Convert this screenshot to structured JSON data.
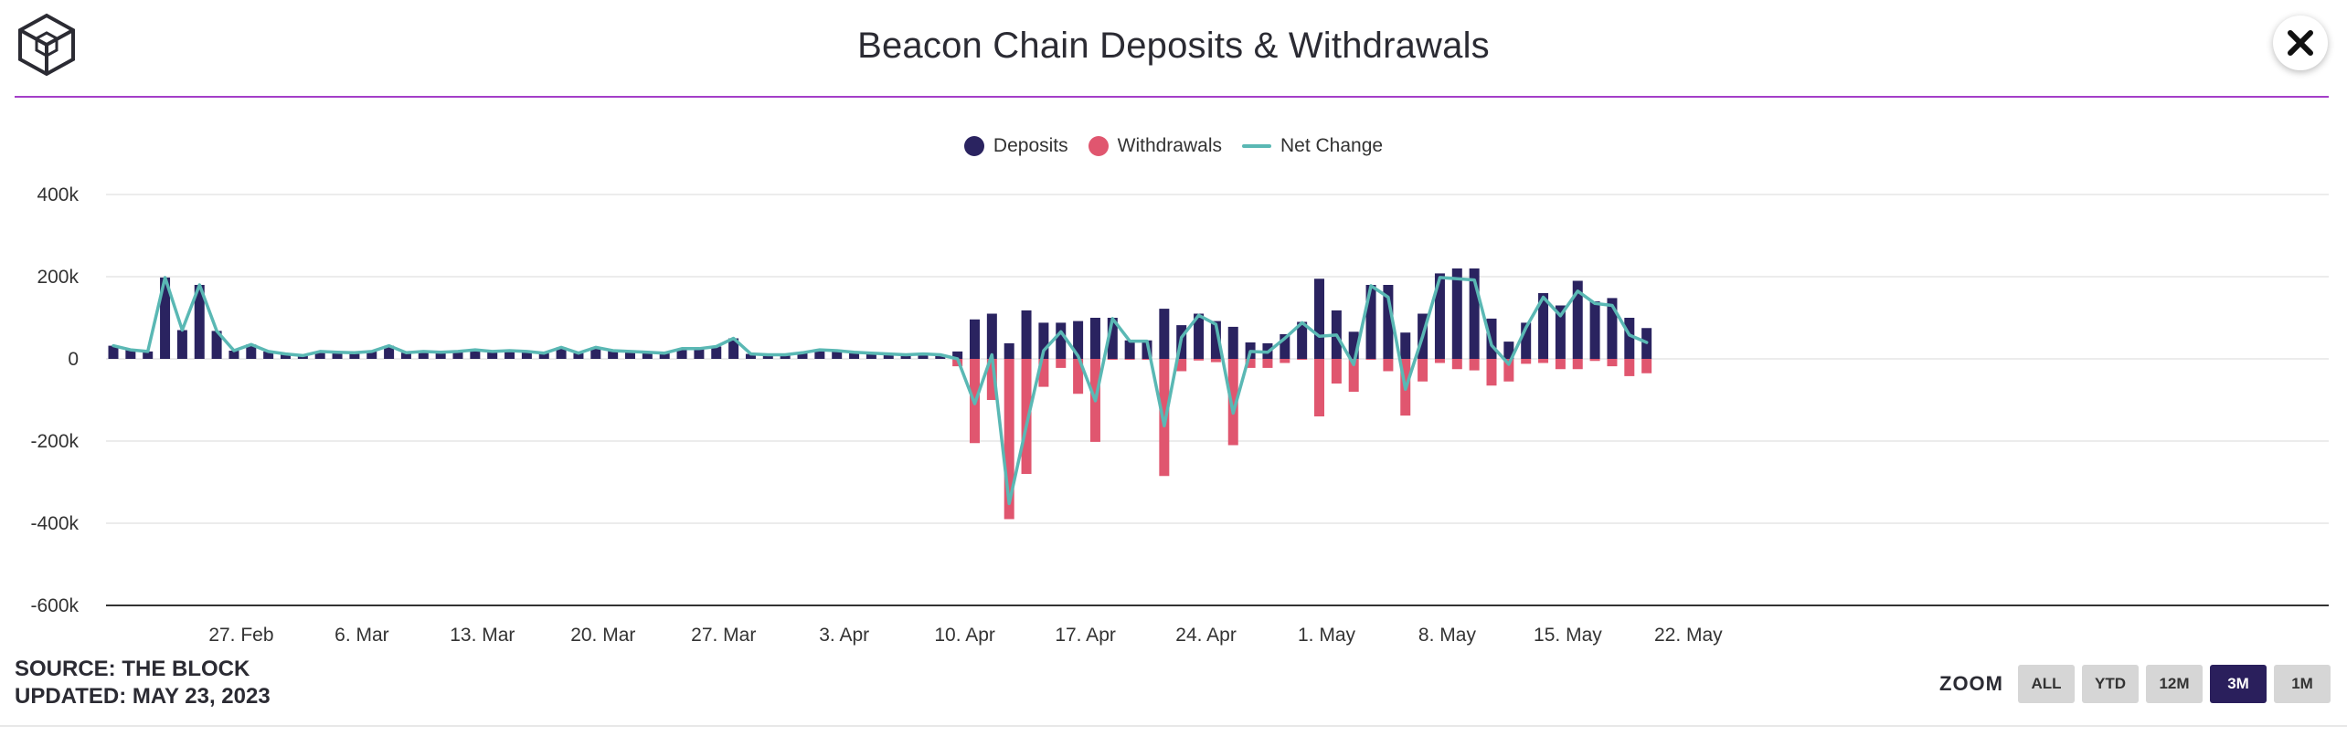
{
  "header": {
    "title": "Beacon Chain Deposits & Withdrawals"
  },
  "legend": {
    "deposits": "Deposits",
    "withdrawals": "Withdrawals",
    "net_change": "Net Change"
  },
  "colors": {
    "deposits": "#2a2360",
    "withdrawals": "#e0566f",
    "net_change": "#5ab8b4",
    "accent": "#a43fc8"
  },
  "chart_data": {
    "type": "bar",
    "title": "Beacon Chain Deposits & Withdrawals",
    "xlabel": "",
    "ylabel": "",
    "ylim": [
      -600000,
      400000
    ],
    "yticks": [
      400000,
      200000,
      0,
      -200000,
      -400000,
      -600000
    ],
    "ytick_labels": [
      "400k",
      "200k",
      "0",
      "-200k",
      "-400k",
      "-600k"
    ],
    "grid": true,
    "legend_position": "top-center",
    "x_tick_labels": [
      "27. Feb",
      "6. Mar",
      "13. Mar",
      "20. Mar",
      "27. Mar",
      "3. Apr",
      "10. Apr",
      "17. Apr",
      "24. Apr",
      "1. May",
      "8. May",
      "15. May",
      "22. May"
    ],
    "x_tick_day_index": [
      7,
      14,
      21,
      28,
      35,
      42,
      49,
      56,
      63,
      70,
      77,
      84,
      91
    ],
    "start_date": "2023-02-20",
    "series": [
      {
        "name": "Deposits",
        "type": "bar",
        "values": [
          32000,
          22000,
          18000,
          198000,
          70000,
          180000,
          68000,
          20000,
          35000,
          18000,
          12000,
          8000,
          18000,
          16000,
          15000,
          18000,
          32000,
          15000,
          18000,
          16000,
          18000,
          22000,
          18000,
          20000,
          18000,
          14000,
          28000,
          14000,
          28000,
          20000,
          18000,
          16000,
          14000,
          25000,
          25000,
          30000,
          50000,
          12000,
          10000,
          10000,
          15000,
          22000,
          20000,
          16000,
          14000,
          12000,
          10000,
          12000,
          10000,
          18000,
          96000,
          110000,
          38000,
          118000,
          88000,
          88000,
          92000,
          100000,
          100000,
          45000,
          45000,
          122000,
          82000,
          110000,
          92000,
          78000,
          40000,
          38000,
          60000,
          90000,
          195000,
          118000,
          66000,
          180000,
          180000,
          64000,
          110000,
          208000,
          220000,
          220000,
          98000,
          42000,
          88000,
          160000,
          130000,
          190000,
          140000,
          148000,
          100000,
          75000
        ]
      },
      {
        "name": "Withdrawals",
        "type": "bar",
        "values": [
          0,
          0,
          0,
          0,
          0,
          0,
          0,
          0,
          0,
          0,
          0,
          0,
          0,
          0,
          0,
          0,
          0,
          0,
          0,
          0,
          0,
          0,
          0,
          0,
          0,
          0,
          0,
          0,
          0,
          0,
          0,
          0,
          0,
          0,
          0,
          0,
          0,
          0,
          0,
          0,
          0,
          0,
          0,
          0,
          0,
          0,
          0,
          0,
          0,
          -18000,
          -205000,
          -100000,
          -390000,
          -280000,
          -68000,
          -22000,
          -85000,
          -202000,
          -2000,
          -2000,
          -2000,
          -285000,
          -30000,
          -4000,
          -8000,
          -210000,
          -22000,
          -22000,
          -10000,
          -2000,
          -140000,
          -60000,
          -80000,
          -2000,
          -30000,
          -138000,
          -55000,
          -10000,
          -25000,
          -28000,
          -65000,
          -55000,
          -12000,
          -10000,
          -25000,
          -25000,
          -5000,
          -18000,
          -42000,
          -35000
        ]
      },
      {
        "name": "Net Change",
        "type": "line",
        "values": [
          32000,
          22000,
          18000,
          198000,
          70000,
          180000,
          68000,
          20000,
          35000,
          18000,
          12000,
          8000,
          18000,
          16000,
          15000,
          18000,
          32000,
          15000,
          18000,
          16000,
          18000,
          22000,
          18000,
          20000,
          18000,
          14000,
          28000,
          14000,
          28000,
          20000,
          18000,
          16000,
          14000,
          25000,
          25000,
          30000,
          50000,
          12000,
          10000,
          10000,
          15000,
          22000,
          20000,
          16000,
          14000,
          12000,
          10000,
          12000,
          10000,
          0,
          -109000,
          10000,
          -352000,
          -162000,
          20000,
          66000,
          7000,
          -102000,
          98000,
          43000,
          43000,
          -163000,
          52000,
          106000,
          84000,
          -132000,
          18000,
          16000,
          50000,
          88000,
          55000,
          58000,
          -14000,
          178000,
          150000,
          -74000,
          55000,
          198000,
          195000,
          192000,
          33000,
          -13000,
          76000,
          150000,
          105000,
          165000,
          135000,
          130000,
          58000,
          40000
        ]
      }
    ]
  },
  "footer": {
    "source": "SOURCE: THE BLOCK",
    "updated": "UPDATED: MAY 23, 2023"
  },
  "zoom": {
    "label": "ZOOM",
    "options": [
      "ALL",
      "YTD",
      "12M",
      "3M",
      "1M"
    ],
    "selected": "3M"
  }
}
